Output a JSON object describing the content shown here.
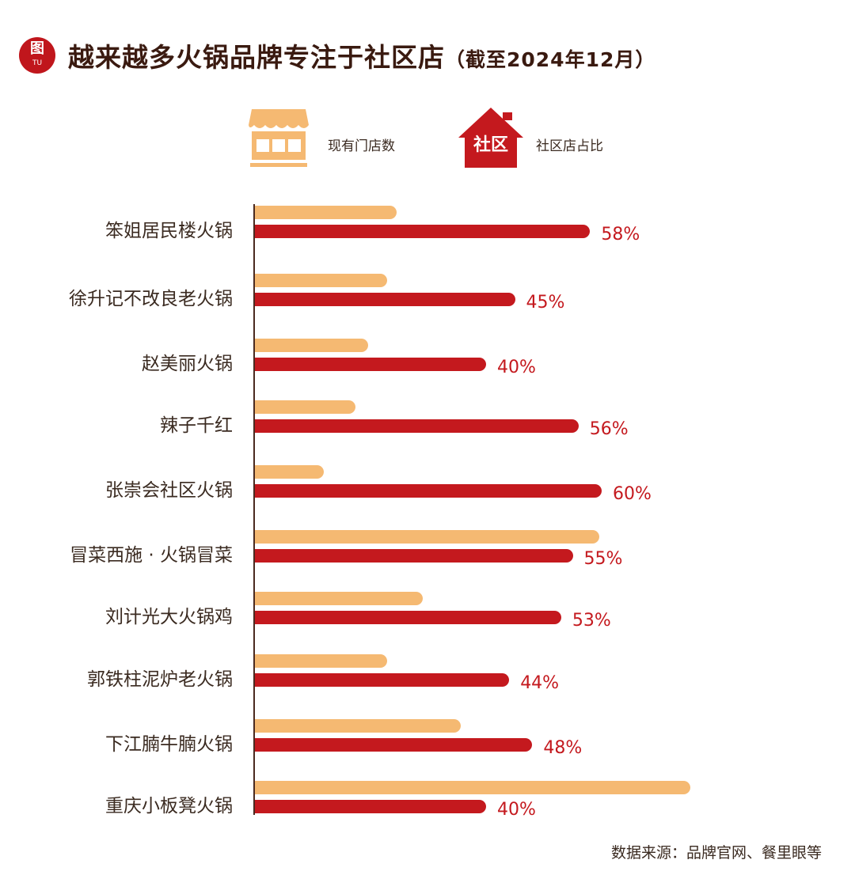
{
  "header": {
    "logo_text": "图",
    "logo_sub": "TU",
    "title": "越来越多火锅品牌专注于社区店",
    "subtitle": "（截至2024年12月）"
  },
  "legend": {
    "store_label": "现有门店数",
    "community_label": "社区店占比",
    "house_icon_text": "社区"
  },
  "colors": {
    "store": "#f5b972",
    "community": "#c4191e",
    "text": "#3a1a10"
  },
  "chart_data": {
    "type": "bar",
    "orientation": "horizontal",
    "title": "越来越多火锅品牌专注于社区店（截至2024年12月）",
    "categories": [
      "笨姐居民楼火锅",
      "徐升记不改良老火锅",
      "赵美丽火锅",
      "辣子千红",
      "张崇会社区火锅",
      "冒菜西施 · 火锅冒菜",
      "刘计光大火锅鸡",
      "郭铁柱泥炉老火锅",
      "下江腩牛腩火锅",
      "重庆小板凳火锅"
    ],
    "series": [
      {
        "name": "现有门店数",
        "note": "relative length, no values printed",
        "values": [
          179,
          167,
          143,
          127,
          87,
          435,
          212,
          167,
          260,
          550
        ]
      },
      {
        "name": "社区店占比",
        "unit": "%",
        "values": [
          58,
          45,
          40,
          56,
          60,
          55,
          53,
          44,
          48,
          40
        ],
        "labels": [
          "58%",
          "45%",
          "40%",
          "56%",
          "60%",
          "55%",
          "53%",
          "44%",
          "48%",
          "40%"
        ]
      }
    ],
    "legend": "top-center",
    "grid": false
  },
  "footer": {
    "source": "数据来源：品牌官网、餐里眼等"
  }
}
